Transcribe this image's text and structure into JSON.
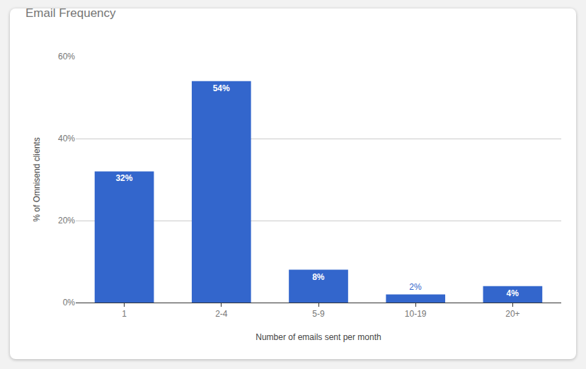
{
  "chart_data": {
    "type": "bar",
    "title": "Email Frequency",
    "x_label": "Number of emails sent per month",
    "y_label": "% of Omnisend clients",
    "categories": [
      "1",
      "2-4",
      "5-9",
      "10-19",
      "20+"
    ],
    "values": [
      32,
      54,
      8,
      2,
      4
    ],
    "value_labels": [
      "32%",
      "54%",
      "8%",
      "2%",
      "4%"
    ],
    "data_labels": true,
    "color": "#3366cc",
    "ylim": [
      0,
      60
    ],
    "yticks": [
      {
        "value": 0,
        "label": "0%"
      },
      {
        "value": 20,
        "label": "20%"
      },
      {
        "value": 40,
        "label": "40%"
      },
      {
        "value": 60,
        "label": "60%"
      }
    ],
    "grid": true
  }
}
